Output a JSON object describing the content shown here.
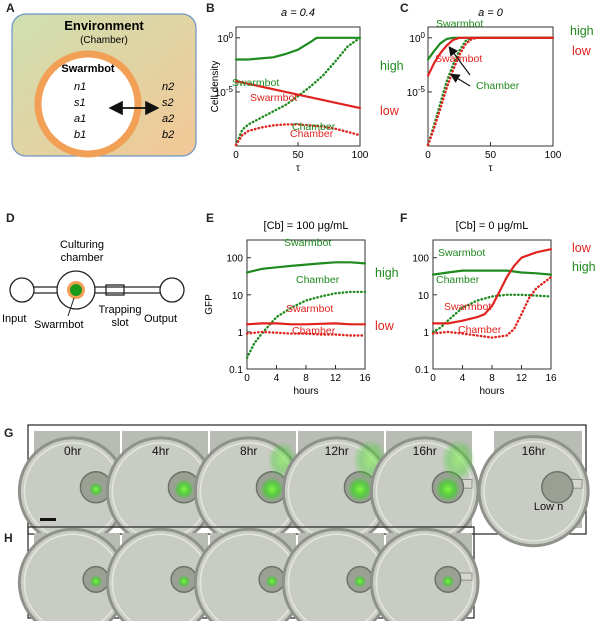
{
  "panels": {
    "A": {
      "letter": "A",
      "environment_title": "Environment",
      "environment_sub": "(Chamber)",
      "swarmbot_title": "Swarmbot",
      "inner_vars": [
        "n1",
        "s1",
        "a1",
        "b1"
      ],
      "outer_vars": [
        "n2",
        "s2",
        "a2",
        "b2"
      ]
    },
    "B": {
      "letter": "B",
      "title": "a = 0.4",
      "ylabel": "Cell density",
      "xlabel": "τ",
      "xticks": [
        "0",
        "50",
        "100"
      ],
      "yticks": [
        "10^0",
        "10^-5"
      ],
      "labels": {
        "swarmbot_green": "Swarmbot",
        "swarmbot_red": "Swarmbot",
        "chamber_green": "Chamber",
        "chamber_red": "Chamber",
        "high": "high",
        "low": "low"
      }
    },
    "C": {
      "letter": "C",
      "title": "a = 0",
      "xlabel": "τ",
      "xticks": [
        "0",
        "50",
        "100"
      ],
      "yticks": [
        "10^0",
        "10^-5"
      ],
      "labels": {
        "swarmbot_green": "Swarmbot",
        "swarmbot_red": "Swarmbot",
        "chamber_green": "Chamber",
        "high": "high",
        "low": "low"
      }
    },
    "D": {
      "letter": "D",
      "culturing": "Culturing",
      "chamber": "chamber",
      "input": "Input",
      "swarmbot": "Swarmbot",
      "trapping": "Trapping",
      "slot": "slot",
      "output": "Output"
    },
    "E": {
      "letter": "E",
      "title": "[Cb] = 100 μg/mL",
      "ylabel": "GFP",
      "xlabel": "hours",
      "xticks": [
        "0",
        "4",
        "8",
        "12",
        "16"
      ],
      "yticks": [
        "100",
        "10",
        "1",
        "0.1"
      ],
      "labels": {
        "swarmbot_green": "Swarmbot",
        "chamber_green": "Chamber",
        "swarmbot_red": "Swarmbot",
        "chamber_red": "Chamber",
        "high": "high",
        "low": "low"
      }
    },
    "F": {
      "letter": "F",
      "title": "[Cb] = 0 μg/mL",
      "xlabel": "hours",
      "xticks": [
        "0",
        "4",
        "8",
        "12",
        "16"
      ],
      "yticks": [
        "100",
        "10",
        "1",
        "0.1"
      ],
      "labels": {
        "swarmbot_green": "Swarmbot",
        "chamber_green": "Chamber",
        "swarmbot_red": "Swarmbot",
        "chamber_red": "Chamber",
        "high": "high",
        "low": "low"
      }
    },
    "G": {
      "letter": "G",
      "frames": [
        "0hr",
        "4hr",
        "8hr",
        "12hr",
        "16hr"
      ],
      "extra_time": "16hr",
      "extra_caption": "Low n"
    },
    "H": {
      "letter": "H"
    }
  },
  "colors": {
    "green": "#1f8a1f",
    "red": "#e0231e",
    "env_fill": "#cfe0b0",
    "env_fill2": "#f3c796",
    "ring": "#f2a055"
  },
  "chart_data": [
    {
      "panel": "B",
      "type": "line",
      "title": "a = 0.4",
      "xlabel": "τ",
      "ylabel": "Cell density",
      "xlim": [
        0,
        100
      ],
      "ylim_log10": [
        -10,
        1
      ],
      "yscale": "log",
      "series": [
        {
          "name": "Swarmbot",
          "color": "#1f8a1f",
          "style": "solid",
          "x": [
            0,
            10,
            20,
            30,
            40,
            50,
            60,
            65,
            70,
            100
          ],
          "log10y": [
            -2,
            -2,
            -1.9,
            -1.8,
            -1.5,
            -1.1,
            -0.4,
            0,
            0,
            0
          ]
        },
        {
          "name": "Chamber",
          "color": "#1f8a1f",
          "style": "dotted",
          "x": [
            0,
            5,
            10,
            20,
            30,
            40,
            50,
            60,
            70,
            80,
            90,
            100
          ],
          "log10y": [
            -10,
            -8.5,
            -8,
            -7.4,
            -6.8,
            -6.2,
            -5.4,
            -4.5,
            -3.5,
            -2.2,
            -0.8,
            0
          ]
        },
        {
          "name": "Swarmbot",
          "color": "#e0231e",
          "style": "solid",
          "x": [
            0,
            20,
            40,
            60,
            80,
            100
          ],
          "log10y": [
            -4,
            -4.5,
            -5,
            -5.5,
            -6,
            -6.5
          ]
        },
        {
          "name": "Chamber",
          "color": "#e0231e",
          "style": "dotted",
          "x": [
            0,
            5,
            10,
            20,
            30,
            40,
            50,
            60,
            70,
            80,
            90,
            100
          ],
          "log10y": [
            -10,
            -9,
            -8.6,
            -8.3,
            -8.1,
            -8,
            -8,
            -8.1,
            -8.2,
            -8.4,
            -8.7,
            -9
          ]
        }
      ]
    },
    {
      "panel": "C",
      "type": "line",
      "title": "a = 0",
      "xlabel": "τ",
      "xlim": [
        0,
        100
      ],
      "ylim_log10": [
        -10,
        1
      ],
      "yscale": "log",
      "series": [
        {
          "name": "Swarmbot",
          "color": "#1f8a1f",
          "style": "solid",
          "x": [
            0,
            5,
            10,
            15,
            20,
            25,
            100
          ],
          "log10y": [
            -2,
            -1.2,
            -0.5,
            -0.1,
            0,
            0,
            0
          ]
        },
        {
          "name": "Chamber",
          "color": "#1f8a1f",
          "style": "dotted",
          "x": [
            0,
            5,
            10,
            15,
            20,
            25,
            30,
            35,
            40,
            100
          ],
          "log10y": [
            -10,
            -8,
            -6,
            -4,
            -2.5,
            -1.2,
            -0.3,
            0,
            0,
            0
          ]
        },
        {
          "name": "Swarmbot",
          "color": "#e0231e",
          "style": "solid",
          "x": [
            0,
            5,
            10,
            15,
            20,
            25,
            30,
            100
          ],
          "log10y": [
            -3.5,
            -2.3,
            -1.4,
            -0.7,
            -0.2,
            0,
            0,
            0
          ]
        },
        {
          "name": "Chamber",
          "color": "#e0231e",
          "style": "dotted",
          "x": [
            0,
            5,
            10,
            15,
            20,
            25,
            30,
            35,
            40,
            100
          ],
          "log10y": [
            -10,
            -8.3,
            -6.5,
            -4.6,
            -3,
            -1.6,
            -0.6,
            -0.1,
            0,
            0
          ]
        }
      ]
    },
    {
      "panel": "E",
      "type": "line",
      "title": "[Cb] = 100 μg/mL",
      "xlabel": "hours",
      "ylabel": "GFP",
      "xlim": [
        0,
        16
      ],
      "ylim": [
        0.1,
        300
      ],
      "yscale": "log",
      "series": [
        {
          "name": "Swarmbot",
          "color": "#1f8a1f",
          "style": "solid",
          "x": [
            0,
            2,
            4,
            6,
            8,
            10,
            12,
            14,
            16
          ],
          "y": [
            40,
            50,
            55,
            60,
            65,
            70,
            75,
            75,
            70
          ]
        },
        {
          "name": "Chamber",
          "color": "#1f8a1f",
          "style": "dotted",
          "x": [
            0,
            1,
            2,
            3,
            4,
            6,
            8,
            10,
            12,
            14,
            16
          ],
          "y": [
            0.2,
            0.5,
            0.9,
            1.5,
            2.5,
            4.5,
            7,
            9,
            11,
            12,
            12
          ]
        },
        {
          "name": "Swarmbot",
          "color": "#e0231e",
          "style": "solid",
          "x": [
            0,
            2,
            4,
            6,
            8,
            10,
            12,
            14,
            16
          ],
          "y": [
            1.6,
            1.7,
            1.7,
            1.6,
            1.6,
            1.65,
            1.7,
            1.6,
            1.6
          ]
        },
        {
          "name": "Chamber",
          "color": "#e0231e",
          "style": "dotted",
          "x": [
            0,
            2,
            4,
            6,
            8,
            10,
            12,
            14,
            16
          ],
          "y": [
            0.9,
            1.0,
            0.95,
            0.9,
            0.9,
            0.85,
            0.85,
            0.8,
            0.8
          ]
        }
      ]
    },
    {
      "panel": "F",
      "type": "line",
      "title": "[Cb] = 0 μg/mL",
      "xlabel": "hours",
      "xlim": [
        0,
        16
      ],
      "ylim": [
        0.1,
        300
      ],
      "yscale": "log",
      "series": [
        {
          "name": "Swarmbot",
          "color": "#1f8a1f",
          "style": "solid",
          "x": [
            0,
            2,
            4,
            6,
            8,
            10,
            12,
            14,
            16
          ],
          "y": [
            35,
            40,
            45,
            45,
            45,
            45,
            40,
            38,
            35
          ]
        },
        {
          "name": "Chamber",
          "color": "#1f8a1f",
          "style": "dotted",
          "x": [
            0,
            1,
            2,
            3,
            4,
            6,
            8,
            10,
            12,
            14,
            16
          ],
          "y": [
            1,
            1.3,
            2,
            3,
            4.5,
            7,
            9,
            10,
            10,
            9.5,
            9
          ]
        },
        {
          "name": "Swarmbot",
          "color": "#e0231e",
          "style": "solid",
          "x": [
            0,
            2,
            4,
            6,
            7,
            8,
            9,
            10,
            11,
            12,
            14,
            16
          ],
          "y": [
            1.7,
            1.7,
            2,
            2.5,
            3,
            5,
            12,
            30,
            60,
            100,
            140,
            170
          ]
        },
        {
          "name": "Chamber",
          "color": "#e0231e",
          "style": "dotted",
          "x": [
            0,
            2,
            4,
            6,
            8,
            10,
            11,
            12,
            13,
            14,
            16
          ],
          "y": [
            0.9,
            1.0,
            0.9,
            0.8,
            0.7,
            0.8,
            1.2,
            3,
            8,
            15,
            30
          ]
        }
      ]
    }
  ]
}
